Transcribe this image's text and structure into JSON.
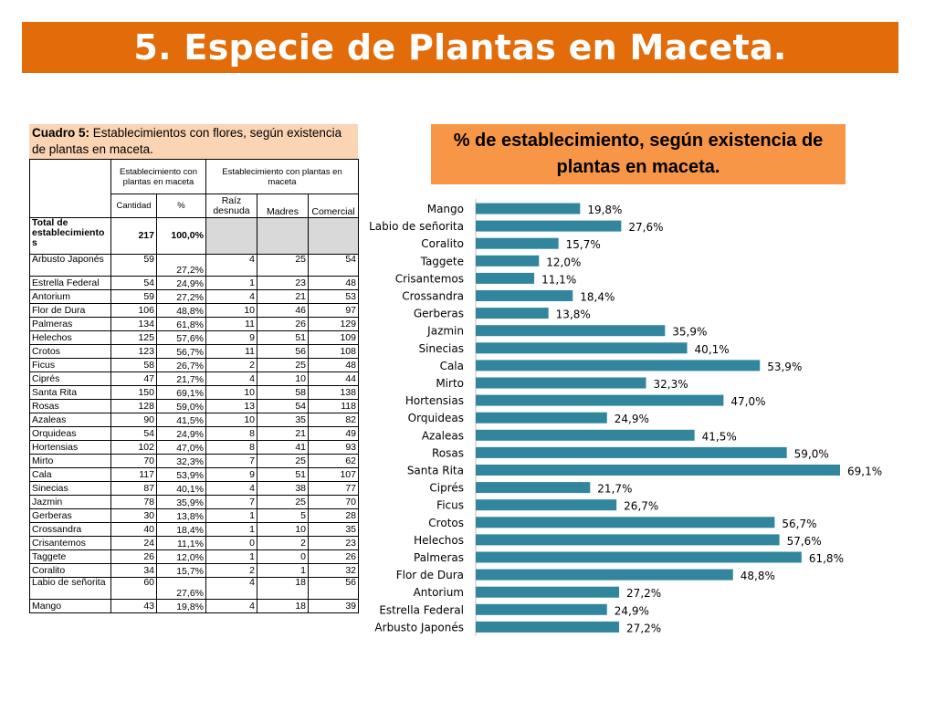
{
  "title": "5. Especie de Plantas en Maceta.",
  "caption": {
    "label": "Cuadro 5:",
    "text": " Establecimientos con flores, según  existencia de plantas en maceta."
  },
  "table": {
    "header": {
      "group1": "Establecimiento con plantas en maceta",
      "group2": "Establecimiento con plantas en maceta",
      "cantidad": "Cantidad",
      "pct": "%",
      "raiz": "Raíz desnuda",
      "madres": "Madres",
      "comercial": "Comercial"
    },
    "total": {
      "label": "Total de establecimiento s",
      "cantidad": "217",
      "pct": "100,0%"
    },
    "rows": [
      {
        "name": "Arbusto Japonés",
        "cant": "59",
        "pct": "27,2%",
        "raiz": "4",
        "madres": "25",
        "com": "54"
      },
      {
        "name": "Estrella Federal",
        "cant": "54",
        "pct": "24,9%",
        "raiz": "1",
        "madres": "23",
        "com": "48"
      },
      {
        "name": "Antorium",
        "cant": "59",
        "pct": "27,2%",
        "raiz": "4",
        "madres": "21",
        "com": "53"
      },
      {
        "name": "Flor de Dura",
        "cant": "106",
        "pct": "48,8%",
        "raiz": "10",
        "madres": "46",
        "com": "97"
      },
      {
        "name": "Palmeras",
        "cant": "134",
        "pct": "61,8%",
        "raiz": "11",
        "madres": "26",
        "com": "129"
      },
      {
        "name": "Helechos",
        "cant": "125",
        "pct": "57,6%",
        "raiz": "9",
        "madres": "51",
        "com": "109"
      },
      {
        "name": "Crotos",
        "cant": "123",
        "pct": "56,7%",
        "raiz": "11",
        "madres": "56",
        "com": "108"
      },
      {
        "name": "Ficus",
        "cant": "58",
        "pct": "26,7%",
        "raiz": "2",
        "madres": "25",
        "com": "48"
      },
      {
        "name": "Ciprés",
        "cant": "47",
        "pct": "21,7%",
        "raiz": "4",
        "madres": "10",
        "com": "44"
      },
      {
        "name": "Santa Rita",
        "cant": "150",
        "pct": "69,1%",
        "raiz": "10",
        "madres": "58",
        "com": "138"
      },
      {
        "name": "Rosas",
        "cant": "128",
        "pct": "59,0%",
        "raiz": "13",
        "madres": "54",
        "com": "118"
      },
      {
        "name": "Azaleas",
        "cant": "90",
        "pct": "41,5%",
        "raiz": "10",
        "madres": "35",
        "com": "82"
      },
      {
        "name": "Orquideas",
        "cant": "54",
        "pct": "24,9%",
        "raiz": "8",
        "madres": "21",
        "com": "49"
      },
      {
        "name": "Hortensias",
        "cant": "102",
        "pct": "47,0%",
        "raiz": "8",
        "madres": "41",
        "com": "93"
      },
      {
        "name": "Mirto",
        "cant": "70",
        "pct": "32,3%",
        "raiz": "7",
        "madres": "25",
        "com": "62"
      },
      {
        "name": "Cala",
        "cant": "117",
        "pct": "53,9%",
        "raiz": "9",
        "madres": "51",
        "com": "107"
      },
      {
        "name": "Sinecias",
        "cant": "87",
        "pct": "40,1%",
        "raiz": "4",
        "madres": "38",
        "com": "77"
      },
      {
        "name": "Jazmin",
        "cant": "78",
        "pct": "35,9%",
        "raiz": "7",
        "madres": "25",
        "com": "70"
      },
      {
        "name": "Gerberas",
        "cant": "30",
        "pct": "13,8%",
        "raiz": "1",
        "madres": "5",
        "com": "28"
      },
      {
        "name": "Crossandra",
        "cant": "40",
        "pct": "18,4%",
        "raiz": "1",
        "madres": "10",
        "com": "35"
      },
      {
        "name": "Crisantemos",
        "cant": "24",
        "pct": "11,1%",
        "raiz": "0",
        "madres": "2",
        "com": "23"
      },
      {
        "name": "Taggete",
        "cant": "26",
        "pct": "12,0%",
        "raiz": "1",
        "madres": "0",
        "com": "26"
      },
      {
        "name": "Coralito",
        "cant": "34",
        "pct": "15,7%",
        "raiz": "2",
        "madres": "1",
        "com": "32"
      },
      {
        "name": "Labio de señorita",
        "cant": "60",
        "pct": "27,6%",
        "raiz": "4",
        "madres": "18",
        "com": "56"
      },
      {
        "name": "Mango",
        "cant": "43",
        "pct": "19,8%",
        "raiz": "4",
        "madres": "18",
        "com": "39"
      }
    ]
  },
  "chart_data": {
    "type": "bar",
    "orientation": "horizontal",
    "title": "% de establecimiento, según existencia de plantas en maceta.",
    "bar_color": "#31859c",
    "title_bg": "#f79646",
    "categories": [
      "Mango",
      "Labio de señorita",
      "Coralito",
      "Taggete",
      "Crisantemos",
      "Crossandra",
      "Gerberas",
      "Jazmin",
      "Sinecias",
      "Cala",
      "Mirto",
      "Hortensias",
      "Orquideas",
      "Azaleas",
      "Rosas",
      "Santa Rita",
      "Ciprés",
      "Ficus",
      "Crotos",
      "Helechos",
      "Palmeras",
      "Flor de Dura",
      "Antorium",
      "Estrella Federal",
      "Arbusto Japonés"
    ],
    "values": [
      19.8,
      27.6,
      15.7,
      12.0,
      11.1,
      18.4,
      13.8,
      35.9,
      40.1,
      53.9,
      32.3,
      47.0,
      24.9,
      41.5,
      59.0,
      69.1,
      21.7,
      26.7,
      56.7,
      57.6,
      61.8,
      48.8,
      27.2,
      24.9,
      27.2
    ],
    "labels": [
      "19,8%",
      "27,6%",
      "15,7%",
      "12,0%",
      "11,1%",
      "18,4%",
      "13,8%",
      "35,9%",
      "40,1%",
      "53,9%",
      "32,3%",
      "47,0%",
      "24,9%",
      "41,5%",
      "59,0%",
      "69,1%",
      "21,7%",
      "26,7%",
      "56,7%",
      "57,6%",
      "61,8%",
      "48,8%",
      "27,2%",
      "24,9%",
      "27,2%"
    ],
    "xlim": [
      0,
      70
    ],
    "grid": false,
    "legend": false
  }
}
